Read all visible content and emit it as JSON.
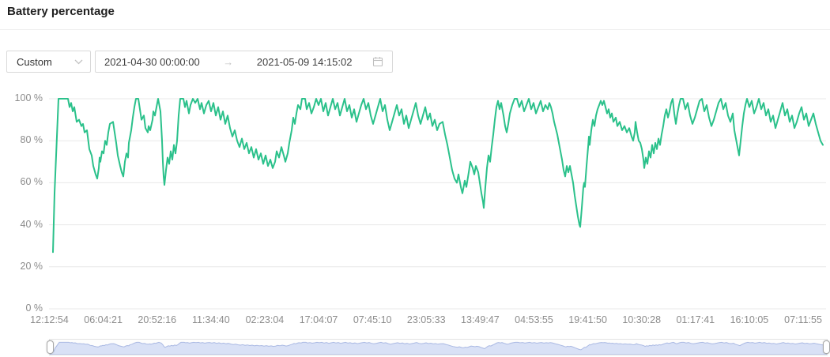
{
  "header": {
    "title": "Battery percentage"
  },
  "controls": {
    "preset_value": "Custom",
    "start_datetime": "2021-04-30 00:00:00",
    "end_datetime": "2021-05-09 14:15:02",
    "separator": "→",
    "icons": {
      "preset_dropdown": "chevron-down",
      "date_separator": "arrow-right",
      "calendar": "calendar"
    }
  },
  "chart_data": {
    "type": "line",
    "title": "Battery percentage",
    "unit": "%",
    "ylim": [
      0,
      100
    ],
    "grid": true,
    "legend": "none",
    "line_color": "#2bc18b",
    "grid_color": "#e8e8e8",
    "axis_text_color": "#8c8c8c",
    "navigator_fill": "#d9e1f6",
    "navigator_stroke": "#aab9e3",
    "y_ticks": [
      "100 %",
      "80 %",
      "60 %",
      "40 %",
      "20 %",
      "0 %"
    ],
    "x_ticks": [
      "12:12:54",
      "06:04:21",
      "20:52:16",
      "11:34:40",
      "02:23:04",
      "17:04:07",
      "07:45:10",
      "23:05:33",
      "13:49:47",
      "04:53:55",
      "19:41:50",
      "10:30:28",
      "01:17:41",
      "16:10:05",
      "07:11:55"
    ],
    "series_name": "Battery percentage",
    "points": [
      [
        5,
        27
      ],
      [
        7,
        55
      ],
      [
        12,
        100
      ],
      [
        24,
        100
      ],
      [
        26,
        96
      ],
      [
        28,
        98
      ],
      [
        30,
        94
      ],
      [
        32,
        96
      ],
      [
        35,
        89
      ],
      [
        38,
        90
      ],
      [
        41,
        87
      ],
      [
        43,
        88
      ],
      [
        45,
        84
      ],
      [
        48,
        85
      ],
      [
        51,
        76
      ],
      [
        54,
        73
      ],
      [
        56,
        68
      ],
      [
        59,
        64
      ],
      [
        61,
        62
      ],
      [
        63,
        67
      ],
      [
        64,
        72
      ],
      [
        65,
        70
      ],
      [
        67,
        75
      ],
      [
        69,
        74
      ],
      [
        71,
        80
      ],
      [
        73,
        78
      ],
      [
        75,
        84
      ],
      [
        77,
        88
      ],
      [
        81,
        89
      ],
      [
        83,
        84
      ],
      [
        85,
        79
      ],
      [
        87,
        73
      ],
      [
        90,
        68
      ],
      [
        92,
        65
      ],
      [
        94,
        63
      ],
      [
        96,
        70
      ],
      [
        98,
        74
      ],
      [
        100,
        72
      ],
      [
        101,
        79
      ],
      [
        104,
        85
      ],
      [
        106,
        91
      ],
      [
        108,
        96
      ],
      [
        110,
        100
      ],
      [
        113,
        100
      ],
      [
        115,
        95
      ],
      [
        117,
        90
      ],
      [
        120,
        92
      ],
      [
        122,
        86
      ],
      [
        125,
        84
      ],
      [
        126,
        87
      ],
      [
        128,
        85
      ],
      [
        131,
        90
      ],
      [
        132,
        94
      ],
      [
        134,
        92
      ],
      [
        136,
        96
      ],
      [
        138,
        100
      ],
      [
        141,
        94
      ],
      [
        143,
        80
      ],
      [
        144,
        70
      ],
      [
        145,
        63
      ],
      [
        146,
        59
      ],
      [
        148,
        66
      ],
      [
        150,
        72
      ],
      [
        152,
        69
      ],
      [
        154,
        75
      ],
      [
        156,
        71
      ],
      [
        158,
        78
      ],
      [
        160,
        74
      ],
      [
        162,
        80
      ],
      [
        164,
        92
      ],
      [
        166,
        100
      ],
      [
        170,
        100
      ],
      [
        172,
        96
      ],
      [
        174,
        99
      ],
      [
        177,
        93
      ],
      [
        179,
        97
      ],
      [
        182,
        100
      ],
      [
        185,
        98
      ],
      [
        188,
        100
      ],
      [
        191,
        95
      ],
      [
        193,
        98
      ],
      [
        196,
        93
      ],
      [
        199,
        97
      ],
      [
        202,
        99
      ],
      [
        205,
        94
      ],
      [
        208,
        98
      ],
      [
        211,
        92
      ],
      [
        214,
        96
      ],
      [
        217,
        90
      ],
      [
        220,
        94
      ],
      [
        223,
        88
      ],
      [
        226,
        92
      ],
      [
        229,
        86
      ],
      [
        232,
        82
      ],
      [
        235,
        85
      ],
      [
        238,
        80
      ],
      [
        241,
        77
      ],
      [
        244,
        81
      ],
      [
        247,
        76
      ],
      [
        250,
        79
      ],
      [
        253,
        74
      ],
      [
        256,
        77
      ],
      [
        259,
        72
      ],
      [
        262,
        76
      ],
      [
        265,
        71
      ],
      [
        268,
        74
      ],
      [
        271,
        69
      ],
      [
        274,
        73
      ],
      [
        277,
        68
      ],
      [
        280,
        71
      ],
      [
        283,
        67
      ],
      [
        286,
        70
      ],
      [
        288,
        75
      ],
      [
        291,
        72
      ],
      [
        294,
        77
      ],
      [
        297,
        73
      ],
      [
        299,
        70
      ],
      [
        302,
        74
      ],
      [
        304,
        79
      ],
      [
        307,
        85
      ],
      [
        309,
        91
      ],
      [
        311,
        88
      ],
      [
        313,
        93
      ],
      [
        315,
        97
      ],
      [
        318,
        95
      ],
      [
        320,
        100
      ],
      [
        324,
        100
      ],
      [
        326,
        95
      ],
      [
        329,
        98
      ],
      [
        332,
        93
      ],
      [
        335,
        96
      ],
      [
        338,
        100
      ],
      [
        341,
        97
      ],
      [
        344,
        100
      ],
      [
        347,
        94
      ],
      [
        350,
        98
      ],
      [
        353,
        92
      ],
      [
        356,
        96
      ],
      [
        359,
        100
      ],
      [
        362,
        95
      ],
      [
        365,
        98
      ],
      [
        368,
        92
      ],
      [
        371,
        96
      ],
      [
        374,
        100
      ],
      [
        377,
        94
      ],
      [
        380,
        97
      ],
      [
        383,
        91
      ],
      [
        386,
        95
      ],
      [
        389,
        89
      ],
      [
        392,
        93
      ],
      [
        395,
        97
      ],
      [
        398,
        100
      ],
      [
        401,
        95
      ],
      [
        404,
        98
      ],
      [
        407,
        92
      ],
      [
        410,
        88
      ],
      [
        413,
        92
      ],
      [
        416,
        96
      ],
      [
        419,
        100
      ],
      [
        422,
        94
      ],
      [
        425,
        97
      ],
      [
        428,
        90
      ],
      [
        431,
        85
      ],
      [
        434,
        89
      ],
      [
        437,
        93
      ],
      [
        440,
        97
      ],
      [
        443,
        92
      ],
      [
        446,
        95
      ],
      [
        449,
        88
      ],
      [
        452,
        92
      ],
      [
        455,
        86
      ],
      [
        458,
        90
      ],
      [
        461,
        94
      ],
      [
        464,
        98
      ],
      [
        467,
        92
      ],
      [
        470,
        88
      ],
      [
        473,
        92
      ],
      [
        476,
        96
      ],
      [
        479,
        90
      ],
      [
        482,
        93
      ],
      [
        485,
        87
      ],
      [
        488,
        90
      ],
      [
        491,
        85
      ],
      [
        494,
        88
      ],
      [
        498,
        89
      ],
      [
        501,
        83
      ],
      [
        504,
        78
      ],
      [
        507,
        72
      ],
      [
        510,
        66
      ],
      [
        513,
        62
      ],
      [
        516,
        60
      ],
      [
        518,
        64
      ],
      [
        521,
        58
      ],
      [
        523,
        55
      ],
      [
        526,
        61
      ],
      [
        528,
        58
      ],
      [
        531,
        65
      ],
      [
        533,
        70
      ],
      [
        536,
        67
      ],
      [
        538,
        64
      ],
      [
        540,
        68
      ],
      [
        543,
        65
      ],
      [
        545,
        60
      ],
      [
        547,
        55
      ],
      [
        549,
        51
      ],
      [
        550,
        48
      ],
      [
        552,
        58
      ],
      [
        554,
        67
      ],
      [
        556,
        73
      ],
      [
        558,
        70
      ],
      [
        560,
        77
      ],
      [
        562,
        83
      ],
      [
        564,
        90
      ],
      [
        566,
        96
      ],
      [
        568,
        99
      ],
      [
        570,
        95
      ],
      [
        572,
        98
      ],
      [
        575,
        92
      ],
      [
        577,
        87
      ],
      [
        579,
        84
      ],
      [
        581,
        88
      ],
      [
        583,
        93
      ],
      [
        586,
        97
      ],
      [
        589,
        100
      ],
      [
        592,
        100
      ],
      [
        595,
        96
      ],
      [
        598,
        99
      ],
      [
        601,
        94
      ],
      [
        604,
        97
      ],
      [
        607,
        100
      ],
      [
        610,
        95
      ],
      [
        613,
        98
      ],
      [
        616,
        93
      ],
      [
        619,
        96
      ],
      [
        622,
        99
      ],
      [
        625,
        94
      ],
      [
        628,
        97
      ],
      [
        631,
        95
      ],
      [
        633,
        98
      ],
      [
        635,
        96
      ],
      [
        637,
        93
      ],
      [
        639,
        89
      ],
      [
        641,
        86
      ],
      [
        643,
        83
      ],
      [
        645,
        79
      ],
      [
        647,
        75
      ],
      [
        649,
        71
      ],
      [
        651,
        66
      ],
      [
        653,
        63
      ],
      [
        655,
        68
      ],
      [
        657,
        65
      ],
      [
        659,
        68
      ],
      [
        661,
        64
      ],
      [
        663,
        60
      ],
      [
        665,
        54
      ],
      [
        667,
        49
      ],
      [
        669,
        44
      ],
      [
        671,
        40
      ],
      [
        672,
        39
      ],
      [
        674,
        48
      ],
      [
        676,
        58
      ],
      [
        677,
        60
      ],
      [
        678,
        58
      ],
      [
        680,
        68
      ],
      [
        682,
        77
      ],
      [
        683,
        82
      ],
      [
        684,
        78
      ],
      [
        686,
        85
      ],
      [
        688,
        90
      ],
      [
        690,
        87
      ],
      [
        692,
        92
      ],
      [
        694,
        95
      ],
      [
        696,
        97
      ],
      [
        698,
        99
      ],
      [
        700,
        97
      ],
      [
        702,
        99
      ],
      [
        704,
        96
      ],
      [
        706,
        93
      ],
      [
        708,
        95
      ],
      [
        710,
        91
      ],
      [
        712,
        93
      ],
      [
        714,
        89
      ],
      [
        717,
        91
      ],
      [
        719,
        87
      ],
      [
        722,
        89
      ],
      [
        725,
        85
      ],
      [
        728,
        87
      ],
      [
        731,
        84
      ],
      [
        734,
        86
      ],
      [
        737,
        82
      ],
      [
        739,
        80
      ],
      [
        741,
        84
      ],
      [
        742,
        89
      ],
      [
        744,
        84
      ],
      [
        746,
        80
      ],
      [
        748,
        79
      ],
      [
        750,
        76
      ],
      [
        752,
        71
      ],
      [
        753,
        67
      ],
      [
        755,
        72
      ],
      [
        757,
        69
      ],
      [
        759,
        75
      ],
      [
        761,
        72
      ],
      [
        763,
        78
      ],
      [
        765,
        74
      ],
      [
        767,
        79
      ],
      [
        769,
        76
      ],
      [
        771,
        81
      ],
      [
        773,
        78
      ],
      [
        775,
        83
      ],
      [
        777,
        87
      ],
      [
        779,
        92
      ],
      [
        781,
        95
      ],
      [
        783,
        91
      ],
      [
        785,
        94
      ],
      [
        787,
        98
      ],
      [
        789,
        100
      ],
      [
        791,
        93
      ],
      [
        793,
        88
      ],
      [
        795,
        93
      ],
      [
        797,
        97
      ],
      [
        799,
        100
      ],
      [
        802,
        100
      ],
      [
        805,
        95
      ],
      [
        808,
        98
      ],
      [
        811,
        92
      ],
      [
        814,
        88
      ],
      [
        817,
        91
      ],
      [
        820,
        95
      ],
      [
        823,
        99
      ],
      [
        826,
        100
      ],
      [
        829,
        94
      ],
      [
        832,
        97
      ],
      [
        835,
        91
      ],
      [
        838,
        87
      ],
      [
        841,
        90
      ],
      [
        844,
        94
      ],
      [
        847,
        98
      ],
      [
        850,
        100
      ],
      [
        853,
        95
      ],
      [
        856,
        98
      ],
      [
        859,
        92
      ],
      [
        862,
        89
      ],
      [
        865,
        93
      ],
      [
        867,
        85
      ],
      [
        870,
        79
      ],
      [
        873,
        73
      ],
      [
        875,
        80
      ],
      [
        877,
        87
      ],
      [
        879,
        93
      ],
      [
        881,
        97
      ],
      [
        883,
        100
      ],
      [
        886,
        96
      ],
      [
        889,
        99
      ],
      [
        892,
        93
      ],
      [
        895,
        96
      ],
      [
        898,
        100
      ],
      [
        901,
        95
      ],
      [
        904,
        98
      ],
      [
        907,
        92
      ],
      [
        910,
        95
      ],
      [
        913,
        89
      ],
      [
        916,
        92
      ],
      [
        919,
        86
      ],
      [
        922,
        90
      ],
      [
        925,
        94
      ],
      [
        928,
        98
      ],
      [
        931,
        92
      ],
      [
        934,
        95
      ],
      [
        937,
        89
      ],
      [
        940,
        92
      ],
      [
        943,
        86
      ],
      [
        946,
        89
      ],
      [
        949,
        93
      ],
      [
        952,
        96
      ],
      [
        955,
        90
      ],
      [
        958,
        93
      ],
      [
        961,
        87
      ],
      [
        964,
        90
      ],
      [
        967,
        93
      ],
      [
        970,
        88
      ],
      [
        973,
        84
      ],
      [
        976,
        80
      ],
      [
        979,
        78
      ]
    ]
  }
}
